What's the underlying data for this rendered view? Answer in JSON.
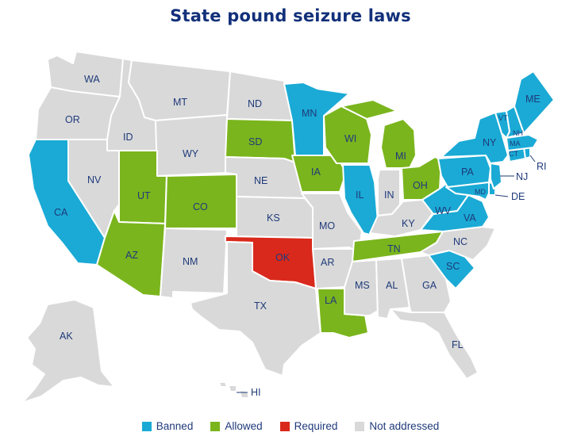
{
  "title": "State pound seizure laws",
  "colors": {
    "banned": "#1aaad5",
    "allowed": "#7ab51d",
    "required": "#d9291c",
    "not_addressed": "#d9d9d9",
    "label": "#1f3a7a",
    "title": "#12307a"
  },
  "legend": [
    {
      "key": "banned",
      "label": "Banned",
      "color": "#1aaad5"
    },
    {
      "key": "allowed",
      "label": "Allowed",
      "color": "#7ab51d"
    },
    {
      "key": "required",
      "label": "Required",
      "color": "#d9291c"
    },
    {
      "key": "not_addressed",
      "label": "Not addressed",
      "color": "#d9d9d9"
    }
  ],
  "states": [
    {
      "abbr": "WA",
      "status": "not_addressed"
    },
    {
      "abbr": "OR",
      "status": "not_addressed"
    },
    {
      "abbr": "CA",
      "status": "banned"
    },
    {
      "abbr": "ID",
      "status": "not_addressed"
    },
    {
      "abbr": "NV",
      "status": "not_addressed"
    },
    {
      "abbr": "MT",
      "status": "not_addressed"
    },
    {
      "abbr": "WY",
      "status": "not_addressed"
    },
    {
      "abbr": "UT",
      "status": "allowed"
    },
    {
      "abbr": "AZ",
      "status": "allowed"
    },
    {
      "abbr": "CO",
      "status": "allowed"
    },
    {
      "abbr": "NM",
      "status": "not_addressed"
    },
    {
      "abbr": "ND",
      "status": "not_addressed"
    },
    {
      "abbr": "SD",
      "status": "allowed"
    },
    {
      "abbr": "NE",
      "status": "not_addressed"
    },
    {
      "abbr": "KS",
      "status": "not_addressed"
    },
    {
      "abbr": "OK",
      "status": "required"
    },
    {
      "abbr": "TX",
      "status": "not_addressed"
    },
    {
      "abbr": "MN",
      "status": "banned"
    },
    {
      "abbr": "IA",
      "status": "allowed"
    },
    {
      "abbr": "MO",
      "status": "not_addressed"
    },
    {
      "abbr": "AR",
      "status": "not_addressed"
    },
    {
      "abbr": "LA",
      "status": "allowed"
    },
    {
      "abbr": "WI",
      "status": "allowed"
    },
    {
      "abbr": "IL",
      "status": "banned"
    },
    {
      "abbr": "MI",
      "status": "allowed"
    },
    {
      "abbr": "IN",
      "status": "not_addressed"
    },
    {
      "abbr": "OH",
      "status": "allowed"
    },
    {
      "abbr": "KY",
      "status": "not_addressed"
    },
    {
      "abbr": "TN",
      "status": "allowed"
    },
    {
      "abbr": "MS",
      "status": "not_addressed"
    },
    {
      "abbr": "AL",
      "status": "not_addressed"
    },
    {
      "abbr": "GA",
      "status": "not_addressed"
    },
    {
      "abbr": "FL",
      "status": "not_addressed"
    },
    {
      "abbr": "SC",
      "status": "banned"
    },
    {
      "abbr": "NC",
      "status": "not_addressed"
    },
    {
      "abbr": "VA",
      "status": "banned"
    },
    {
      "abbr": "WV",
      "status": "banned"
    },
    {
      "abbr": "MD",
      "status": "banned"
    },
    {
      "abbr": "DE",
      "status": "banned"
    },
    {
      "abbr": "PA",
      "status": "banned"
    },
    {
      "abbr": "NJ",
      "status": "banned"
    },
    {
      "abbr": "NY",
      "status": "banned"
    },
    {
      "abbr": "CT",
      "status": "banned"
    },
    {
      "abbr": "RI",
      "status": "banned"
    },
    {
      "abbr": "MA",
      "status": "banned"
    },
    {
      "abbr": "VT",
      "status": "banned"
    },
    {
      "abbr": "NH",
      "status": "banned"
    },
    {
      "abbr": "ME",
      "status": "banned"
    },
    {
      "abbr": "AK",
      "status": "not_addressed"
    },
    {
      "abbr": "HI",
      "status": "not_addressed"
    }
  ]
}
